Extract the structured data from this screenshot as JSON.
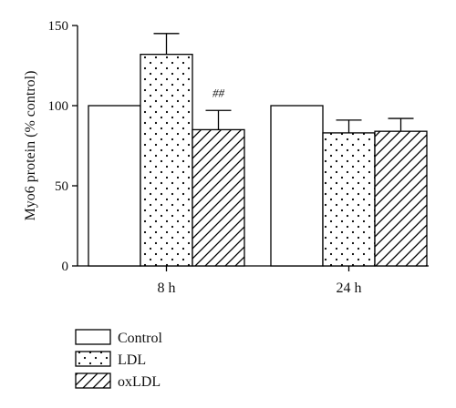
{
  "chart_data": {
    "type": "bar",
    "ylabel": "Myo6 protein (% control)",
    "xlabel": "",
    "ylim": [
      0,
      150
    ],
    "yticks": [
      0,
      50,
      100,
      150
    ],
    "categories": [
      "8 h",
      "24 h"
    ],
    "series": [
      {
        "name": "Control",
        "pattern": "none",
        "values": [
          100,
          100
        ],
        "errors": [
          0,
          0
        ]
      },
      {
        "name": "LDL",
        "pattern": "dots",
        "values": [
          132,
          83
        ],
        "errors": [
          13,
          8
        ]
      },
      {
        "name": "oxLDL",
        "pattern": "diagonal",
        "values": [
          85,
          84
        ],
        "errors": [
          12,
          8
        ]
      }
    ],
    "annotations": [
      {
        "text": "##",
        "category": "8 h",
        "series": "oxLDL"
      }
    ],
    "legend": "bottom-left",
    "grid": false,
    "colors": {
      "stroke": "#000000",
      "fill": "#ffffff"
    }
  }
}
